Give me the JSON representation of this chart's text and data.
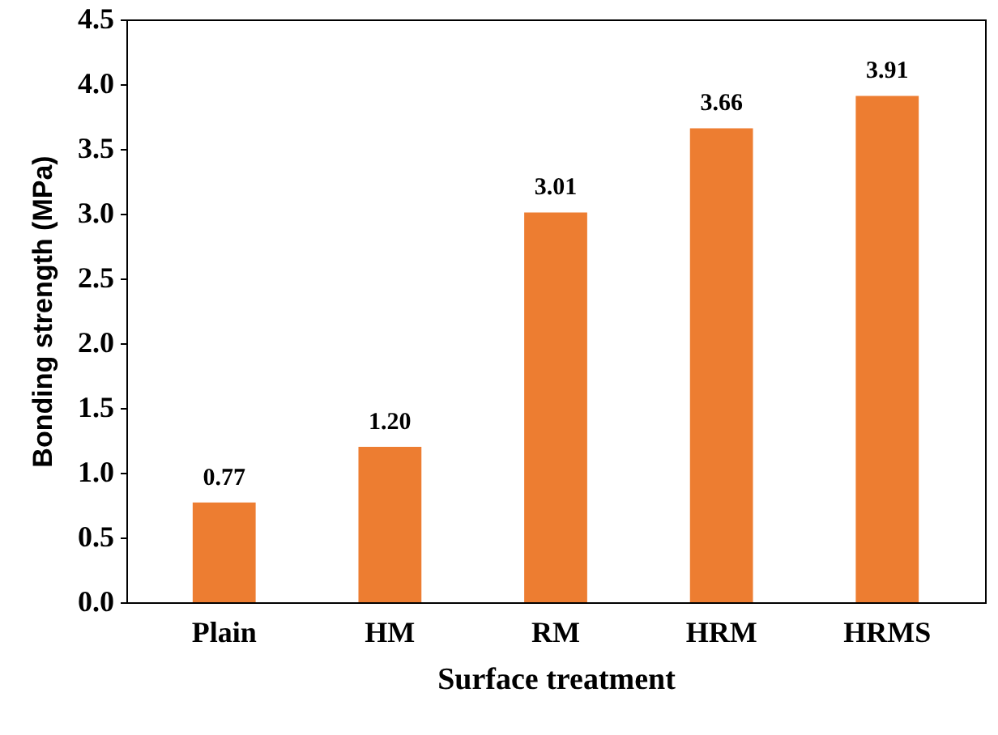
{
  "chart_data": {
    "type": "bar",
    "xlabel": "Surface treatment",
    "ylabel": "Bonding strength (MPa)",
    "categories": [
      "Plain",
      "HM",
      "RM",
      "HRM",
      "HRMS"
    ],
    "values": [
      0.77,
      1.2,
      3.01,
      3.66,
      3.91
    ],
    "value_labels": [
      "0.77",
      "1.20",
      "3.01",
      "3.66",
      "3.91"
    ],
    "color": "#ed7d31",
    "ylim": [
      0,
      4.5
    ],
    "yticks": [
      {
        "value": 0,
        "label": "0.0"
      },
      {
        "value": 0.5,
        "label": "0.5"
      },
      {
        "value": 1,
        "label": "1.0"
      },
      {
        "value": 1.5,
        "label": "1.5"
      },
      {
        "value": 2,
        "label": "2.0"
      },
      {
        "value": 2.5,
        "label": "2.5"
      },
      {
        "value": 3,
        "label": "3.0"
      },
      {
        "value": 3.5,
        "label": "3.5"
      },
      {
        "value": 4,
        "label": "4.0"
      },
      {
        "value": 4.5,
        "label": "4.5"
      }
    ],
    "grid": false
  }
}
